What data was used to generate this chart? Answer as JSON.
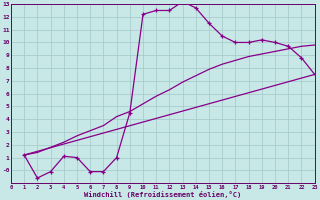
{
  "bg_color": "#c8e8e8",
  "grid_color": "#a8cccc",
  "line_color": "#880088",
  "xlim": [
    0,
    23
  ],
  "ylim": [
    -1,
    13
  ],
  "xticks": [
    0,
    1,
    2,
    3,
    4,
    5,
    6,
    7,
    8,
    9,
    10,
    11,
    12,
    13,
    14,
    15,
    16,
    17,
    18,
    19,
    20,
    21,
    22,
    23
  ],
  "yticks": [
    0,
    1,
    2,
    3,
    4,
    5,
    6,
    7,
    8,
    9,
    10,
    11,
    12,
    13
  ],
  "ytick_labels": [
    "-0",
    "1",
    "2",
    "3",
    "4",
    "5",
    "6",
    "7",
    "8",
    "9",
    "10",
    "11",
    "12",
    "13"
  ],
  "xlabel": "Windchill (Refroidissement éolien,°C)",
  "curve1_x": [
    1,
    2,
    3,
    4,
    5,
    6,
    7,
    8,
    9,
    10,
    11,
    12,
    13,
    14,
    15,
    16,
    17,
    18,
    19,
    20,
    21,
    22,
    23
  ],
  "curve1_y": [
    1.2,
    -0.6,
    -0.1,
    1.1,
    1.0,
    -0.1,
    -0.1,
    1.0,
    4.5,
    12.2,
    12.5,
    12.5,
    13.2,
    12.7,
    11.5,
    10.5,
    10.0,
    10.0,
    10.2,
    10.0,
    9.7,
    8.8,
    7.5
  ],
  "curve2_x": [
    1,
    2,
    3,
    4,
    5,
    6,
    7,
    8,
    9,
    10,
    11,
    12,
    13,
    14,
    15,
    16,
    17,
    18,
    19,
    20,
    21,
    22,
    23
  ],
  "curve2_y": [
    1.2,
    1.4,
    1.8,
    2.2,
    2.7,
    3.1,
    3.5,
    4.2,
    4.6,
    5.2,
    5.8,
    6.3,
    6.9,
    7.4,
    7.9,
    8.3,
    8.6,
    8.9,
    9.1,
    9.3,
    9.5,
    9.7,
    9.8
  ],
  "curve3_x": [
    1,
    23
  ],
  "curve3_y": [
    1.2,
    7.5
  ]
}
